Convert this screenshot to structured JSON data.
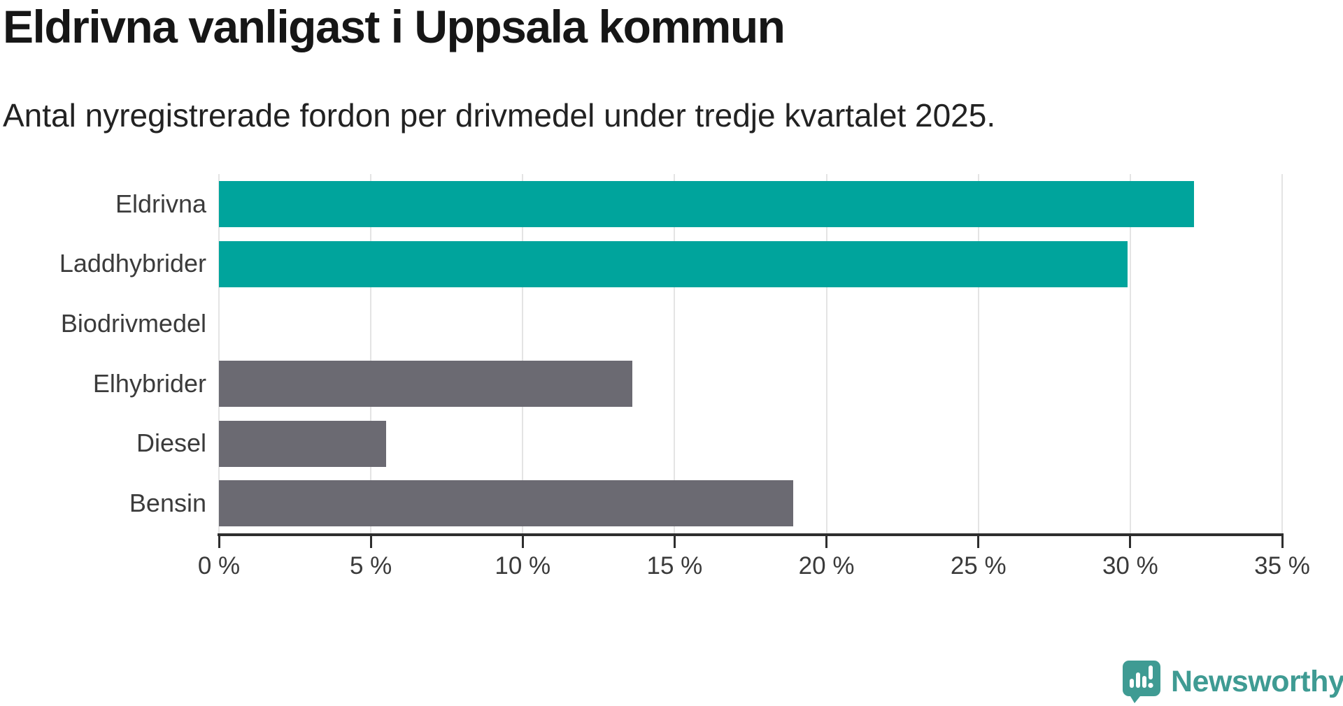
{
  "chart_data": {
    "type": "bar",
    "orientation": "horizontal",
    "title": "Eldrivna vanligast i Uppsala kommun",
    "subtitle": "Antal nyregistrerade fordon per drivmedel under tredje kvartalet 2025.",
    "categories": [
      "Eldrivna",
      "Laddhybrider",
      "Biodrivmedel",
      "Elhybrider",
      "Diesel",
      "Bensin"
    ],
    "values": [
      32.1,
      29.9,
      0,
      13.6,
      5.5,
      18.9
    ],
    "unit": "%",
    "bar_colors": [
      "#00a49c",
      "#00a49c",
      "#6b6a72",
      "#6b6a72",
      "#6b6a72",
      "#6b6a72"
    ],
    "xlim": [
      0,
      35
    ],
    "x_ticks": [
      0,
      5,
      10,
      15,
      20,
      25,
      30,
      35
    ],
    "x_tick_labels": [
      "0 %",
      "5 %",
      "10 %",
      "15 %",
      "20 %",
      "25 %",
      "30 %",
      "35 %"
    ],
    "grid": "vertical-light",
    "legend": "none"
  },
  "colors": {
    "electric_bar": "#00a49c",
    "other_bar": "#6b6a72",
    "brand_teal": "#3f9b93",
    "gridline": "#e4e4e4",
    "axis": "#2e2e2e",
    "label_text": "#3b3b3b",
    "title_text": "#161616"
  },
  "branding": {
    "logo_text": "Newsworthy",
    "logo_icon": "speech-bubble-bar-chart-exclamation"
  }
}
